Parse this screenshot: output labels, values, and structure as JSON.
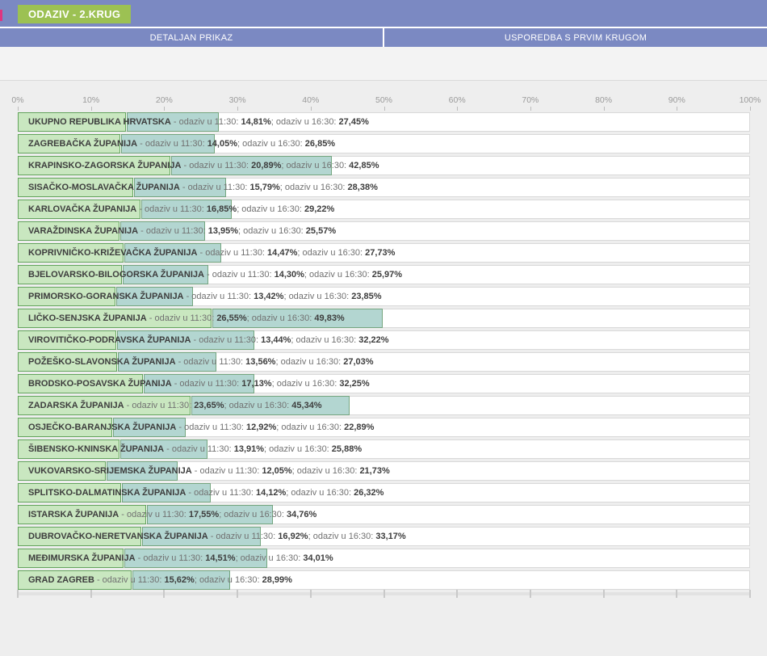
{
  "header": {
    "badge_label": "ODAZIV - 2.KRUG"
  },
  "tabs": [
    {
      "label": "DETALJAN PRIKAZ"
    },
    {
      "label": "USPOREDBA S PRVIM KRUGOM"
    }
  ],
  "labels": {
    "segment_1130": " - odaziv u 11:30: ",
    "segment_1630": "; odaziv u 16:30: "
  },
  "colors": {
    "header_blue": "#7b89c2",
    "badge_green": "#9cc153",
    "accent_pink": "#e0357f",
    "bar_1130_fill": "#c9e7c0",
    "bar_1130_border": "#63a45c",
    "bar_1630_fill": "#b3d6d1",
    "bar_1630_border": "#74a57f",
    "row_background": "#ffffff",
    "row_border": "#d9d9d9",
    "page_background": "#eeeeee",
    "axis_text": "#9a9a9a",
    "text_dark": "#3d3d3d",
    "text_gray": "#717171"
  },
  "chart_data": {
    "type": "bar",
    "orientation": "horizontal",
    "xlim": [
      0,
      100
    ],
    "grid": false,
    "legend_position": "none",
    "x_ticks": [
      "0%",
      "10%",
      "20%",
      "30%",
      "40%",
      "50%",
      "60%",
      "70%",
      "80%",
      "90%",
      "100%"
    ],
    "series": [
      {
        "name": "odaziv u 11:30",
        "color": "#c9e7c0"
      },
      {
        "name": "odaziv u 16:30",
        "color": "#b3d6d1"
      }
    ],
    "rows": [
      {
        "name": "UKUPNO REPUBLIKA HRVATSKA",
        "v1130": 14.81,
        "v1630": 27.45,
        "v1130_label": "14,81%",
        "v1630_label": "27,45%"
      },
      {
        "name": "ZAGREBAČKA ŽUPANIJA",
        "v1130": 14.05,
        "v1630": 26.85,
        "v1130_label": "14,05%",
        "v1630_label": "26,85%"
      },
      {
        "name": "KRAPINSKO-ZAGORSKA ŽUPANIJA",
        "v1130": 20.89,
        "v1630": 42.85,
        "v1130_label": "20,89%",
        "v1630_label": "42,85%"
      },
      {
        "name": "SISAČKO-MOSLAVAČKA ŽUPANIJA",
        "v1130": 15.79,
        "v1630": 28.38,
        "v1130_label": "15,79%",
        "v1630_label": "28,38%"
      },
      {
        "name": "KARLOVAČKA ŽUPANIJA",
        "v1130": 16.85,
        "v1630": 29.22,
        "v1130_label": "16,85%",
        "v1630_label": "29,22%"
      },
      {
        "name": "VARAŽDINSKA ŽUPANIJA",
        "v1130": 13.95,
        "v1630": 25.57,
        "v1130_label": "13,95%",
        "v1630_label": "25,57%"
      },
      {
        "name": "KOPRIVNIČKO-KRIŽEVAČKA ŽUPANIJA",
        "v1130": 14.47,
        "v1630": 27.73,
        "v1130_label": "14,47%",
        "v1630_label": "27,73%"
      },
      {
        "name": "BJELOVARSKO-BILOGORSKA ŽUPANIJA",
        "v1130": 14.3,
        "v1630": 25.97,
        "v1130_label": "14,30%",
        "v1630_label": "25,97%"
      },
      {
        "name": "PRIMORSKO-GORANSKA ŽUPANIJA",
        "v1130": 13.42,
        "v1630": 23.85,
        "v1130_label": "13,42%",
        "v1630_label": "23,85%"
      },
      {
        "name": "LIČKO-SENJSKA ŽUPANIJA",
        "v1130": 26.55,
        "v1630": 49.83,
        "v1130_label": "26,55%",
        "v1630_label": "49,83%"
      },
      {
        "name": "VIROVITIČKO-PODRAVSKA ŽUPANIJA",
        "v1130": 13.44,
        "v1630": 32.22,
        "v1130_label": "13,44%",
        "v1630_label": "32,22%"
      },
      {
        "name": "POŽEŠKO-SLAVONSKA ŽUPANIJA",
        "v1130": 13.56,
        "v1630": 27.03,
        "v1130_label": "13,56%",
        "v1630_label": "27,03%"
      },
      {
        "name": "BRODSKO-POSAVSKA ŽUPANIJA",
        "v1130": 17.13,
        "v1630": 32.25,
        "v1130_label": "17,13%",
        "v1630_label": "32,25%"
      },
      {
        "name": "ZADARSKA ŽUPANIJA",
        "v1130": 23.65,
        "v1630": 45.34,
        "v1130_label": "23,65%",
        "v1630_label": "45,34%"
      },
      {
        "name": "OSJEČKO-BARANJSKA ŽUPANIJA",
        "v1130": 12.92,
        "v1630": 22.89,
        "v1130_label": "12,92%",
        "v1630_label": "22,89%"
      },
      {
        "name": "ŠIBENSKO-KNINSKA ŽUPANIJA",
        "v1130": 13.91,
        "v1630": 25.88,
        "v1130_label": "13,91%",
        "v1630_label": "25,88%"
      },
      {
        "name": "VUKOVARSKO-SRIJEMSKA ŽUPANIJA",
        "v1130": 12.05,
        "v1630": 21.73,
        "v1130_label": "12,05%",
        "v1630_label": "21,73%"
      },
      {
        "name": "SPLITSKO-DALMATINSKA ŽUPANIJA",
        "v1130": 14.12,
        "v1630": 26.32,
        "v1130_label": "14,12%",
        "v1630_label": "26,32%"
      },
      {
        "name": "ISTARSKA ŽUPANIJA",
        "v1130": 17.55,
        "v1630": 34.76,
        "v1130_label": "17,55%",
        "v1630_label": "34,76%"
      },
      {
        "name": "DUBROVAČKO-NERETVANSKA ŽUPANIJA",
        "v1130": 16.92,
        "v1630": 33.17,
        "v1130_label": "16,92%",
        "v1630_label": "33,17%"
      },
      {
        "name": "MEĐIMURSKA ŽUPANIJA",
        "v1130": 14.51,
        "v1630": 34.01,
        "v1130_label": "14,51%",
        "v1630_label": "34,01%"
      },
      {
        "name": "GRAD ZAGREB",
        "v1130": 15.62,
        "v1630": 28.99,
        "v1130_label": "15,62%",
        "v1630_label": "28,99%"
      }
    ]
  }
}
